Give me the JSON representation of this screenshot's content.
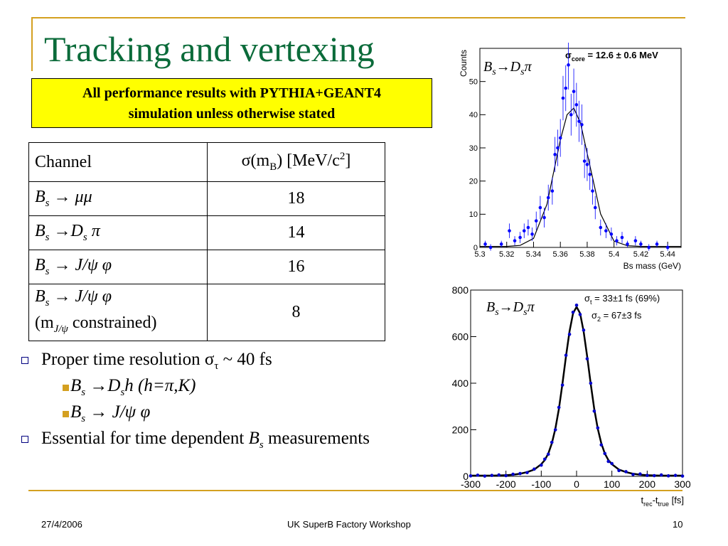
{
  "header": {
    "title": "Tracking and vertexing"
  },
  "note": {
    "lines": [
      "All performance results with PYTHIA+GEANT4",
      "simulation unless otherwise stated"
    ]
  },
  "table": {
    "header": [
      [
        "Channel"
      ],
      [
        "σ(m",
        "B",
        ") [MeV/c",
        "2",
        "]"
      ]
    ],
    "rows": [
      [
        [
          "B",
          "s",
          " → μμ"
        ],
        18
      ],
      [
        [
          "B",
          "s",
          " →D",
          "s",
          " π"
        ],
        14
      ],
      [
        [
          "B",
          "s",
          " → J/ψ φ"
        ],
        16
      ],
      [
        [
          "B",
          "s",
          " → J/ψ φ",
          "(m",
          "J/ψ",
          " constrained)"
        ],
        8
      ]
    ]
  },
  "bullets": [
    {
      "text": [
        "Proper time resolution σ",
        "τ",
        " ~ 40 fs"
      ],
      "sub": [
        [
          "B",
          "s",
          " →D",
          "s",
          "h (h=π,K)"
        ],
        [
          "B",
          "s",
          " → J/ψ φ"
        ]
      ]
    },
    {
      "text": [
        "Essential for time dependent ",
        "B",
        "s",
        " measurements"
      ]
    }
  ],
  "footer": {
    "date": "27/4/2006",
    "event": "UK SuperB Factory Workshop",
    "page": "10"
  },
  "plots": [
    {
      "type": "scatter",
      "label": [
        "B",
        "s",
        "→D",
        "s",
        "π"
      ],
      "annotation": [
        "σ",
        "core",
        " = 12.6 ± 0.6 MeV"
      ],
      "ylabel": "Counts",
      "xlabel": "Bs mass (GeV)",
      "color": "#0000ff",
      "curve_color": "#000000",
      "xlim": [
        5.3,
        5.45
      ],
      "xticks": [
        5.3,
        5.32,
        5.34,
        5.36,
        5.38,
        5.4,
        5.42,
        5.44
      ],
      "ylim": [
        0,
        60
      ],
      "yticks": [
        0,
        10,
        20,
        30,
        40,
        50
      ],
      "x": [
        5.304,
        5.308,
        5.316,
        5.322,
        5.326,
        5.33,
        5.333,
        5.336,
        5.339,
        5.342,
        5.345,
        5.348,
        5.351,
        5.354,
        5.356,
        5.358,
        5.36,
        5.362,
        5.364,
        5.366,
        5.368,
        5.37,
        5.372,
        5.374,
        5.376,
        5.378,
        5.38,
        5.382,
        5.384,
        5.386,
        5.39,
        5.394,
        5.398,
        5.402,
        5.406,
        5.41,
        5.416,
        5.42,
        5.426,
        5.432,
        5.44
      ],
      "values": [
        1,
        0,
        1,
        5,
        2,
        3,
        5,
        6,
        4,
        8,
        12,
        9,
        15,
        17,
        28,
        30,
        33,
        45,
        48,
        55,
        40,
        47,
        43,
        38,
        37,
        26,
        25,
        22,
        17,
        12,
        6,
        5,
        4,
        2,
        3,
        1,
        2,
        1,
        0,
        1,
        0
      ],
      "errors": [
        1,
        1,
        1,
        2.2,
        1.4,
        1.7,
        2.2,
        2.4,
        2,
        2.8,
        3.5,
        3,
        3.9,
        4.1,
        5.3,
        5.5,
        5.7,
        6.7,
        6.9,
        7.4,
        6.3,
        6.9,
        6.6,
        6.2,
        6.1,
        5.1,
        5,
        4.7,
        4.1,
        3.5,
        2.4,
        2.2,
        2,
        1.4,
        1.7,
        1,
        1.4,
        1,
        1,
        1,
        1
      ],
      "curve": {
        "x": [
          5.3,
          5.31,
          5.32,
          5.33,
          5.34,
          5.35,
          5.36,
          5.365,
          5.37,
          5.375,
          5.38,
          5.39,
          5.4,
          5.41,
          5.42,
          5.43,
          5.45
        ],
        "y": [
          0.3,
          0.3,
          0.3,
          0.6,
          2.7,
          13,
          32.4,
          40,
          42,
          37.5,
          28.3,
          10.1,
          1.9,
          0.5,
          0.3,
          0.3,
          0.3
        ]
      }
    },
    {
      "type": "scatter",
      "label": [
        "B",
        "s",
        "→D",
        "s",
        "π"
      ],
      "annotation": [
        [
          "σ",
          "t",
          " = 33±1 fs (69%)"
        ],
        [
          "σ",
          "2",
          " = 67±3 fs"
        ]
      ],
      "xlabel": [
        "t",
        "rec",
        "-t",
        "true",
        " [fs]"
      ],
      "color": "#0000cc",
      "curve_color": "#000000",
      "xlim": [
        -300,
        300
      ],
      "xticks": [
        -300,
        -200,
        -100,
        0,
        100,
        200,
        300
      ],
      "ylim": [
        0,
        800
      ],
      "yticks": [
        0,
        200,
        400,
        600,
        800
      ],
      "x": [
        -300,
        -280,
        -260,
        -240,
        -220,
        -200,
        -180,
        -160,
        -140,
        -120,
        -100,
        -90,
        -80,
        -70,
        -60,
        -50,
        -40,
        -30,
        -20,
        -10,
        0,
        10,
        20,
        30,
        40,
        50,
        60,
        70,
        80,
        90,
        100,
        120,
        140,
        160,
        180,
        200,
        220,
        240,
        260,
        280,
        300
      ],
      "values": [
        2,
        5,
        1,
        4,
        6,
        3,
        9,
        12,
        16,
        31,
        48,
        74,
        95,
        146,
        200,
        296,
        392,
        520,
        610,
        705,
        735,
        695,
        628,
        505,
        400,
        280,
        208,
        135,
        98,
        64,
        55,
        25,
        20,
        8,
        10,
        4,
        3,
        6,
        2,
        4,
        1
      ],
      "curve": {
        "x": [
          -300,
          -280,
          -260,
          -240,
          -220,
          -200,
          -180,
          -160,
          -140,
          -120,
          -100,
          -90,
          -80,
          -70,
          -60,
          -50,
          -40,
          -30,
          -20,
          -10,
          0,
          10,
          20,
          30,
          40,
          50,
          60,
          70,
          80,
          90,
          100,
          120,
          140,
          160,
          180,
          200,
          220,
          240,
          260,
          280,
          300
        ],
        "y": [
          3,
          3,
          3,
          3,
          4,
          5,
          7,
          11,
          18,
          29,
          52,
          70,
          98,
          142,
          205,
          290,
          398,
          515,
          622,
          700,
          728,
          700,
          622,
          515,
          398,
          290,
          205,
          142,
          98,
          70,
          52,
          29,
          18,
          11,
          7,
          5,
          4,
          3,
          3,
          3,
          3
        ]
      }
    }
  ]
}
